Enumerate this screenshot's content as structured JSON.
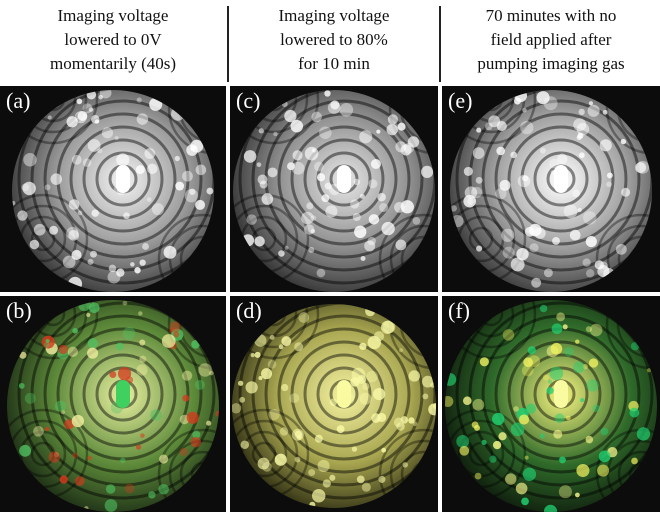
{
  "columns": [
    {
      "header": [
        "Imaging voltage",
        "lowered to 0V",
        "momentarily (40s)"
      ],
      "panels": [
        {
          "label": "(a)"
        },
        {
          "label": "(b)"
        }
      ]
    },
    {
      "header": [
        "Imaging voltage",
        "lowered to 80%",
        "for 10 min"
      ],
      "panels": [
        {
          "label": "(c)"
        },
        {
          "label": "(d)"
        }
      ]
    },
    {
      "header": [
        "70 minutes with no",
        "field applied after",
        "pumping imaging gas"
      ],
      "panels": [
        {
          "label": "(e)"
        },
        {
          "label": "(f)"
        }
      ]
    }
  ]
}
